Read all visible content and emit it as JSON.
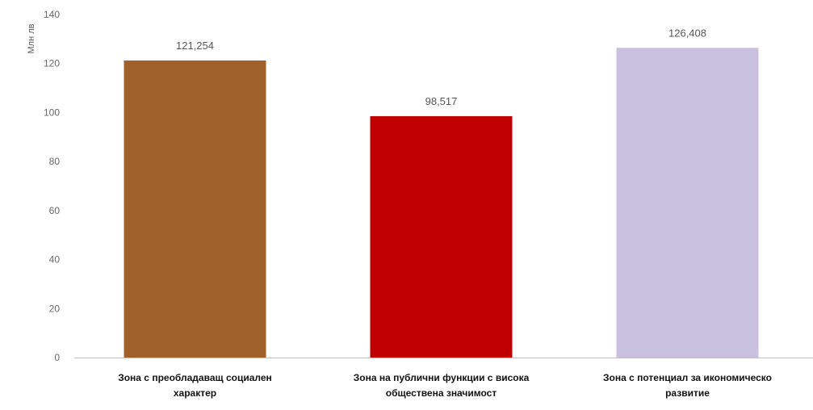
{
  "chart_data": {
    "type": "bar",
    "ylabel": "Млн лв",
    "ylim": [
      0,
      140
    ],
    "yticks": [
      0,
      20,
      40,
      60,
      80,
      100,
      120,
      140
    ],
    "grid": false,
    "legend": "none",
    "categories": [
      [
        "Зона с преобладаващ социален",
        "характер"
      ],
      [
        "Зона на публични функции с висока",
        "обществена значимост"
      ],
      [
        "Зона с потенциал за икономическо",
        "развитие"
      ]
    ],
    "values": [
      121.254,
      98.517,
      126.408
    ],
    "data_labels": [
      "121,254",
      "98,517",
      "126,408"
    ],
    "colors": [
      "#a0622a",
      "#c00000",
      "#c8c0dc"
    ]
  }
}
